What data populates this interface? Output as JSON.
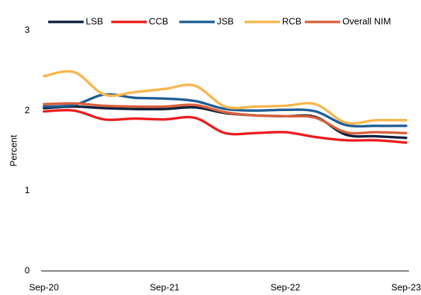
{
  "chart_data": {
    "type": "line",
    "categories": [
      "Sep-20",
      null,
      null,
      null,
      "Sep-21",
      null,
      null,
      null,
      "Sep-22",
      null,
      null,
      null,
      "Sep-23"
    ],
    "series": [
      {
        "name": "LSB",
        "color": "#0d1f3c",
        "values": [
          2.03,
          2.05,
          2.03,
          2.02,
          2.02,
          2.04,
          1.97,
          1.94,
          1.93,
          1.92,
          1.7,
          1.68,
          1.66
        ]
      },
      {
        "name": "CCB",
        "color": "#ee1c1c",
        "values": [
          1.99,
          2.0,
          1.89,
          1.9,
          1.89,
          1.91,
          1.72,
          1.72,
          1.73,
          1.67,
          1.63,
          1.63,
          1.6
        ]
      },
      {
        "name": "JSB",
        "color": "#1f5e94",
        "values": [
          2.05,
          2.07,
          2.2,
          2.16,
          2.15,
          2.12,
          2.02,
          2.0,
          2.01,
          1.99,
          1.82,
          1.81,
          1.81
        ]
      },
      {
        "name": "RCB",
        "color": "#f9b54c",
        "values": [
          2.43,
          2.48,
          2.2,
          2.23,
          2.27,
          2.31,
          2.05,
          2.05,
          2.06,
          2.08,
          1.85,
          1.88,
          1.88
        ]
      },
      {
        "name": "Overall NIM",
        "color": "#d9603b",
        "values": [
          2.08,
          2.09,
          2.06,
          2.05,
          2.05,
          2.07,
          1.98,
          1.94,
          1.93,
          1.91,
          1.73,
          1.73,
          1.72
        ]
      }
    ],
    "y_label": "Percent",
    "ylim": [
      0,
      3
    ],
    "yticks": [
      0,
      1,
      2,
      3
    ],
    "grid": false,
    "legend": "top"
  }
}
